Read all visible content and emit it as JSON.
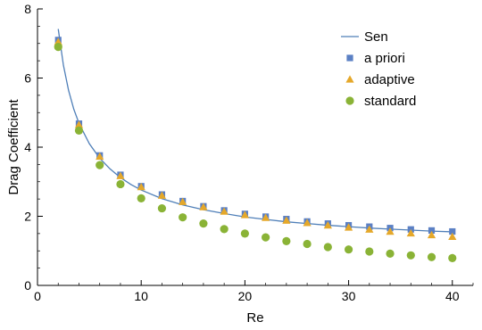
{
  "chart_data": {
    "type": "scatter",
    "xlabel": "Re",
    "ylabel": "Drag Coefficient",
    "xlim": [
      0,
      42
    ],
    "ylim": [
      0,
      8
    ],
    "xticks": [
      0,
      10,
      20,
      30,
      40
    ],
    "yticks": [
      0,
      2,
      4,
      6,
      8
    ],
    "grid": false,
    "legend_position": "top-right",
    "colors": {
      "Sen": "#4f7fb8",
      "a priori": "#5b80c4",
      "adaptive": "#e5a82a",
      "standard": "#8ab336"
    },
    "x": [
      2,
      4,
      6,
      8,
      10,
      12,
      14,
      16,
      18,
      20,
      22,
      24,
      26,
      28,
      30,
      32,
      34,
      36,
      38,
      40
    ],
    "series": [
      {
        "name": "Sen",
        "kind": "line",
        "x": [
          2,
          2.5,
          3,
          3.5,
          4,
          5,
          6,
          7,
          8,
          9,
          10,
          12,
          14,
          16,
          18,
          20,
          22,
          24,
          26,
          28,
          30,
          32,
          34,
          36,
          38,
          40
        ],
        "values": [
          7.42,
          6.37,
          5.64,
          5.1,
          4.69,
          4.1,
          3.68,
          3.37,
          3.12,
          2.92,
          2.76,
          2.51,
          2.33,
          2.19,
          2.08,
          1.98,
          1.91,
          1.84,
          1.79,
          1.74,
          1.7,
          1.66,
          1.63,
          1.6,
          1.57,
          1.55
        ]
      },
      {
        "name": "a priori",
        "kind": "square",
        "values": [
          7.1,
          4.68,
          3.76,
          3.2,
          2.87,
          2.63,
          2.44,
          2.29,
          2.17,
          2.07,
          1.99,
          1.92,
          1.85,
          1.79,
          1.74,
          1.7,
          1.66,
          1.62,
          1.59,
          1.56
        ]
      },
      {
        "name": "adaptive",
        "kind": "triangle",
        "values": [
          7.05,
          4.65,
          3.73,
          3.17,
          2.85,
          2.6,
          2.42,
          2.27,
          2.14,
          2.04,
          1.96,
          1.88,
          1.81,
          1.74,
          1.68,
          1.62,
          1.56,
          1.51,
          1.46,
          1.41
        ]
      },
      {
        "name": "standard",
        "kind": "circle",
        "values": [
          6.9,
          4.48,
          3.48,
          2.93,
          2.52,
          2.23,
          1.97,
          1.79,
          1.63,
          1.5,
          1.39,
          1.28,
          1.2,
          1.11,
          1.04,
          0.98,
          0.92,
          0.87,
          0.82,
          0.79
        ]
      }
    ]
  }
}
